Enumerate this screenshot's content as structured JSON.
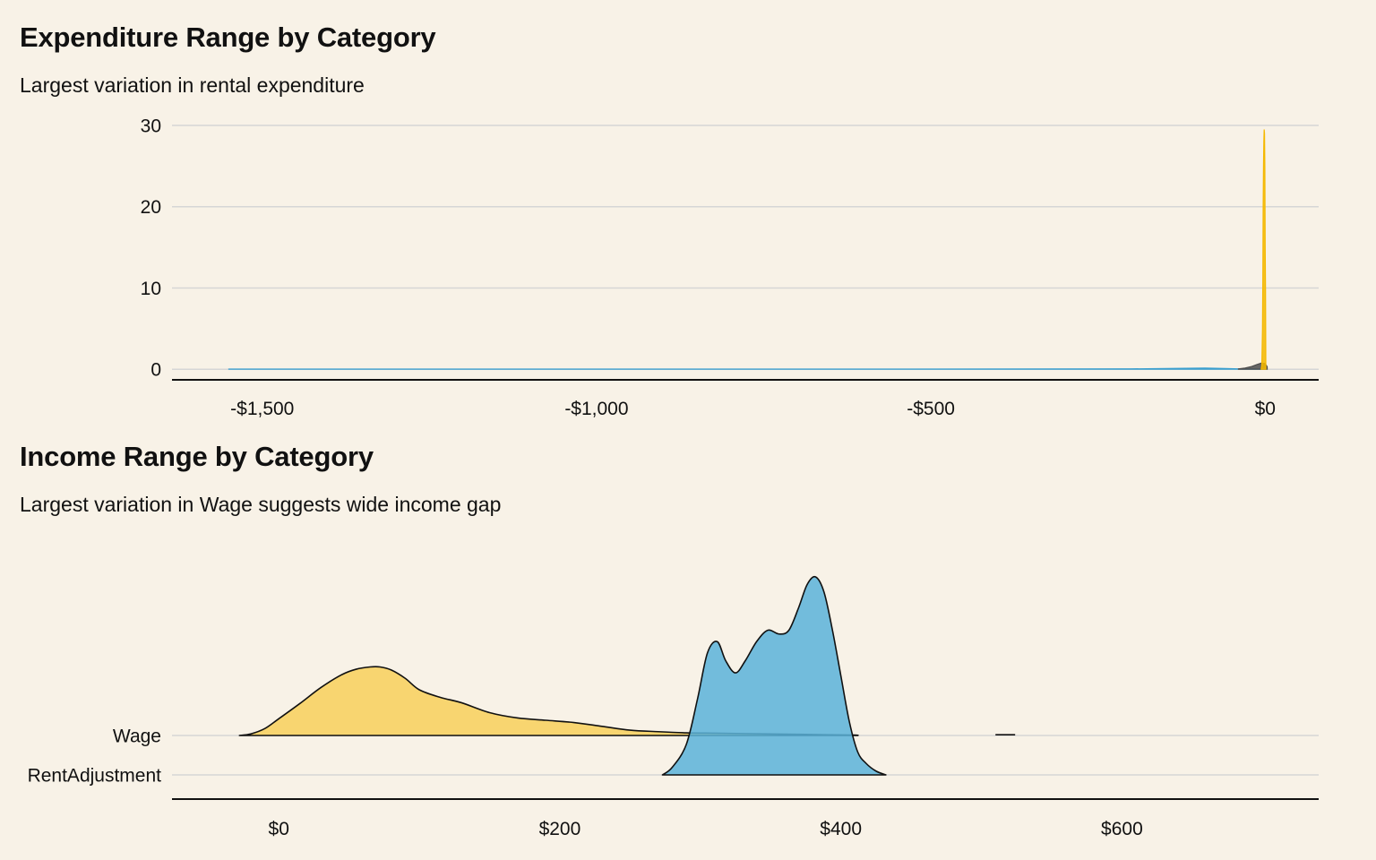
{
  "chart_data": [
    {
      "type": "area",
      "title": "Expenditure Range by Category",
      "subtitle": "Largest variation in rental expenditure",
      "xlabel": "",
      "ylabel": "",
      "x_tick_labels": [
        "-$1,500",
        "-$1,000",
        "-$500",
        "$0"
      ],
      "x_ticks": [
        -1500,
        -1000,
        -500,
        0
      ],
      "y_tick_labels": [
        "0",
        "10",
        "20",
        "30"
      ],
      "y_ticks": [
        0,
        10,
        20,
        30
      ],
      "xlim": [
        -1635,
        80
      ],
      "ylim": [
        -1.3,
        30
      ],
      "grid": "horizontal",
      "series": [
        {
          "color": "#3a9fcf",
          "x": [
            -1550,
            -1100,
            -600,
            -200,
            -90,
            -60,
            -40,
            -20,
            0
          ],
          "y": [
            0.02,
            0.03,
            0.02,
            0.05,
            0.15,
            0.1,
            0.05,
            0.05,
            0.02
          ]
        },
        {
          "color": "#4d4d4d",
          "x": [
            -40,
            -30,
            -20,
            -12,
            -6,
            0,
            3
          ],
          "y": [
            0.05,
            0.15,
            0.35,
            0.6,
            0.75,
            0.7,
            0.3
          ]
        },
        {
          "color": "#f5b800",
          "x": [
            -6,
            -5,
            -4,
            -3.5,
            -3,
            -2.5,
            -2,
            -1.5,
            -1,
            -0.5,
            0,
            0.5,
            1
          ],
          "y": [
            0,
            0.5,
            5,
            11,
            20,
            25,
            28,
            29.5,
            29,
            25,
            15,
            10,
            0
          ]
        }
      ]
    },
    {
      "type": "area",
      "title": "Income Range by Category",
      "subtitle": "Largest variation in Wage suggests wide income gap",
      "xlabel": "",
      "ylabel": "",
      "categories": [
        "Wage",
        "RentAdjustment"
      ],
      "x_tick_labels": [
        "$0",
        "$200",
        "$400",
        "$600"
      ],
      "x_ticks": [
        0,
        200,
        400,
        600
      ],
      "xlim": [
        -76,
        740
      ],
      "grid": "horizontal",
      "series": [
        {
          "category": "Wage",
          "color": "#f8d05a",
          "x": [
            -28,
            -20,
            -10,
            0,
            15,
            30,
            45,
            55,
            65,
            72,
            80,
            90,
            100,
            115,
            130,
            150,
            170,
            190,
            210,
            230,
            250,
            270,
            290,
            310,
            330,
            350,
            370,
            390,
            410,
            412
          ],
          "y": [
            0,
            0.02,
            0.09,
            0.22,
            0.42,
            0.63,
            0.8,
            0.87,
            0.9,
            0.9,
            0.86,
            0.75,
            0.6,
            0.5,
            0.43,
            0.3,
            0.23,
            0.2,
            0.17,
            0.12,
            0.07,
            0.05,
            0.035,
            0.03,
            0.025,
            0.02,
            0.015,
            0.01,
            0.005,
            0
          ]
        },
        {
          "category": "RentAdjustment",
          "color": "#5ab3d9",
          "x": [
            273,
            280,
            290,
            298,
            305,
            312,
            318,
            325,
            332,
            340,
            348,
            356,
            363,
            370,
            376,
            382,
            388,
            394,
            400,
            406,
            412,
            418,
            425,
            432
          ],
          "y": [
            0,
            0.1,
            0.4,
            1.0,
            1.6,
            1.75,
            1.5,
            1.34,
            1.5,
            1.75,
            1.9,
            1.85,
            1.9,
            2.2,
            2.5,
            2.6,
            2.4,
            1.9,
            1.3,
            0.7,
            0.3,
            0.15,
            0.05,
            0
          ]
        },
        {
          "category": "Wage",
          "color": "#111111",
          "x": [
            510,
            524
          ],
          "y": [
            0.01,
            0.01
          ]
        }
      ]
    }
  ]
}
